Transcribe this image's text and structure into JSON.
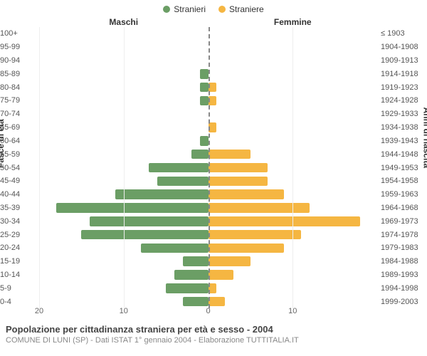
{
  "chart": {
    "type": "population-pyramid",
    "legend": {
      "male": {
        "label": "Stranieri",
        "color": "#6b9e65"
      },
      "female": {
        "label": "Straniere",
        "color": "#f5b642"
      }
    },
    "header": {
      "male": "Maschi",
      "female": "Femmine"
    },
    "y_left_title": "Fasce di età",
    "y_right_title": "Anni di nascita",
    "x_max": 20,
    "x_ticks": [
      20,
      10,
      0,
      10
    ],
    "grid_color": "#eeeeee",
    "midline_color": "#888888",
    "rows": [
      {
        "age": "100+",
        "birth": "≤ 1903",
        "m": 0,
        "f": 0
      },
      {
        "age": "95-99",
        "birth": "1904-1908",
        "m": 0,
        "f": 0
      },
      {
        "age": "90-94",
        "birth": "1909-1913",
        "m": 0,
        "f": 0
      },
      {
        "age": "85-89",
        "birth": "1914-1918",
        "m": 1,
        "f": 0
      },
      {
        "age": "80-84",
        "birth": "1919-1923",
        "m": 1,
        "f": 1
      },
      {
        "age": "75-79",
        "birth": "1924-1928",
        "m": 1,
        "f": 1
      },
      {
        "age": "70-74",
        "birth": "1929-1933",
        "m": 0,
        "f": 0
      },
      {
        "age": "65-69",
        "birth": "1934-1938",
        "m": 0,
        "f": 1
      },
      {
        "age": "60-64",
        "birth": "1939-1943",
        "m": 1,
        "f": 0
      },
      {
        "age": "55-59",
        "birth": "1944-1948",
        "m": 2,
        "f": 5
      },
      {
        "age": "50-54",
        "birth": "1949-1953",
        "m": 7,
        "f": 7
      },
      {
        "age": "45-49",
        "birth": "1954-1958",
        "m": 6,
        "f": 7
      },
      {
        "age": "40-44",
        "birth": "1959-1963",
        "m": 11,
        "f": 9
      },
      {
        "age": "35-39",
        "birth": "1964-1968",
        "m": 18,
        "f": 12
      },
      {
        "age": "30-34",
        "birth": "1969-1973",
        "m": 14,
        "f": 18
      },
      {
        "age": "25-29",
        "birth": "1974-1978",
        "m": 15,
        "f": 11
      },
      {
        "age": "20-24",
        "birth": "1979-1983",
        "m": 8,
        "f": 9
      },
      {
        "age": "15-19",
        "birth": "1984-1988",
        "m": 3,
        "f": 5
      },
      {
        "age": "10-14",
        "birth": "1989-1993",
        "m": 4,
        "f": 3
      },
      {
        "age": "5-9",
        "birth": "1994-1998",
        "m": 5,
        "f": 1
      },
      {
        "age": "0-4",
        "birth": "1999-2003",
        "m": 3,
        "f": 2
      }
    ]
  },
  "footer": {
    "title": "Popolazione per cittadinanza straniera per età e sesso - 2004",
    "subtitle": "COMUNE DI LUNI (SP) - Dati ISTAT 1° gennaio 2004 - Elaborazione TUTTITALIA.IT"
  }
}
